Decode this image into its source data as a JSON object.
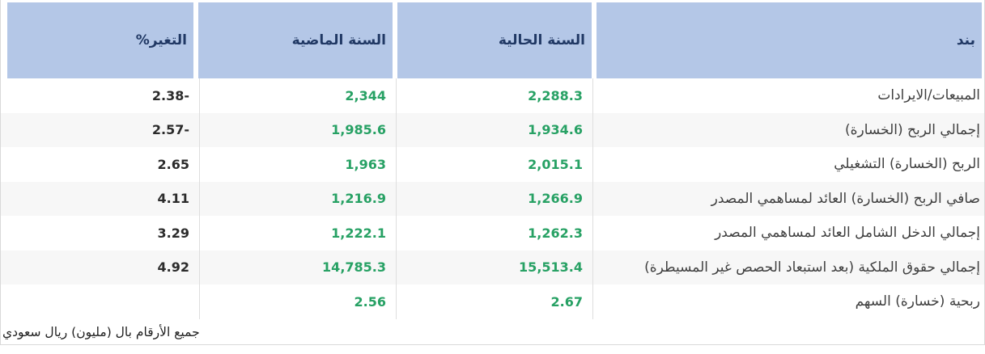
{
  "colors": {
    "header_bg": "#b4c7e7",
    "header_text": "#203864",
    "item_text": "#3f3f3f",
    "value_green": "#27a164",
    "change_text": "#2b2b2b",
    "stripe_bg": "#f7f7f7",
    "border": "#d9d9d9"
  },
  "footnote": "جميع الأرقام بال (مليون) ريال سعودي",
  "chart_data": {
    "type": "table",
    "columns": [
      "بند",
      "السنة الحالية",
      "السنة الماضية",
      "التغير%"
    ],
    "rows": [
      {
        "item": "المبيعات/الايرادات",
        "current": "2,288.3",
        "previous": "2,344",
        "change": "-2.38"
      },
      {
        "item": "إجمالي الربح (الخسارة)",
        "current": "1,934.6",
        "previous": "1,985.6",
        "change": "-2.57"
      },
      {
        "item": "الربح (الخسارة) التشغيلي",
        "current": "2,015.1",
        "previous": "1,963",
        "change": "2.65"
      },
      {
        "item": "صافي الربح (الخسارة) العائد لمساهمي المصدر",
        "current": "1,266.9",
        "previous": "1,216.9",
        "change": "4.11"
      },
      {
        "item": "إجمالي الدخل الشامل العائد لمساهمي المصدر",
        "current": "1,262.3",
        "previous": "1,222.1",
        "change": "3.29"
      },
      {
        "item": "إجمالي حقوق الملكية (بعد استبعاد الحصص غير المسيطرة)",
        "current": "15,513.4",
        "previous": "14,785.3",
        "change": "4.92"
      },
      {
        "item": "ربحية (خسارة) السهم",
        "current": "2.67",
        "previous": "2.56",
        "change": ""
      }
    ]
  }
}
